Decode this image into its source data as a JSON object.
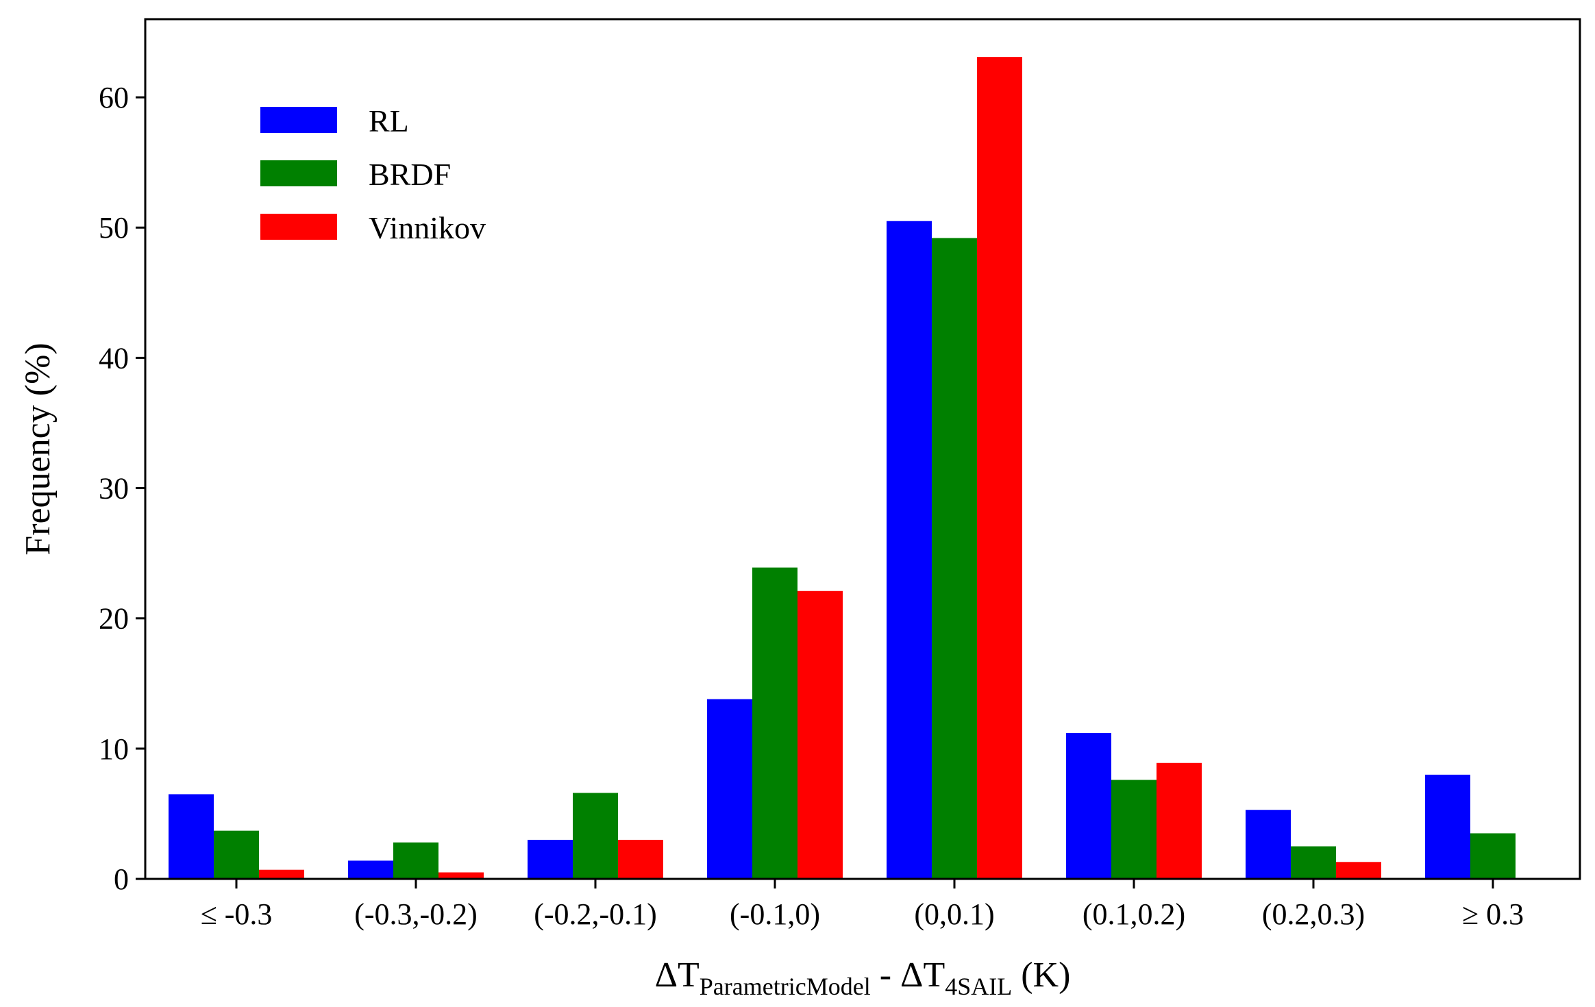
{
  "chart_data": {
    "type": "bar",
    "categories": [
      "≤ -0.3",
      "(-0.3,-0.2)",
      "(-0.2,-0.1)",
      "(-0.1,0)",
      "(0,0.1)",
      "(0.1,0.2)",
      "(0.2,0.3)",
      "≥ 0.3"
    ],
    "series": [
      {
        "name": "RL",
        "color": "#0000ff",
        "values": [
          6.5,
          1.4,
          3.0,
          13.8,
          50.5,
          11.2,
          5.3,
          8.0
        ]
      },
      {
        "name": "BRDF",
        "color": "#008000",
        "values": [
          3.7,
          2.8,
          6.6,
          23.9,
          49.2,
          7.6,
          2.5,
          3.5
        ]
      },
      {
        "name": "Vinnikov",
        "color": "#ff0000",
        "values": [
          0.7,
          0.5,
          3.0,
          22.1,
          63.1,
          8.9,
          1.3,
          0.0
        ]
      }
    ],
    "xlabel": {
      "prefix": "ΔT",
      "sub1": "ParametricModel",
      "middle": " - ΔT",
      "sub2": "4SAIL",
      "suffix": " (K)"
    },
    "ylabel": "Frequency (%)",
    "ylim": [
      0,
      66
    ],
    "yticks": [
      0,
      10,
      20,
      30,
      40,
      50,
      60
    ],
    "grid": false,
    "legend_position": "top-left"
  }
}
